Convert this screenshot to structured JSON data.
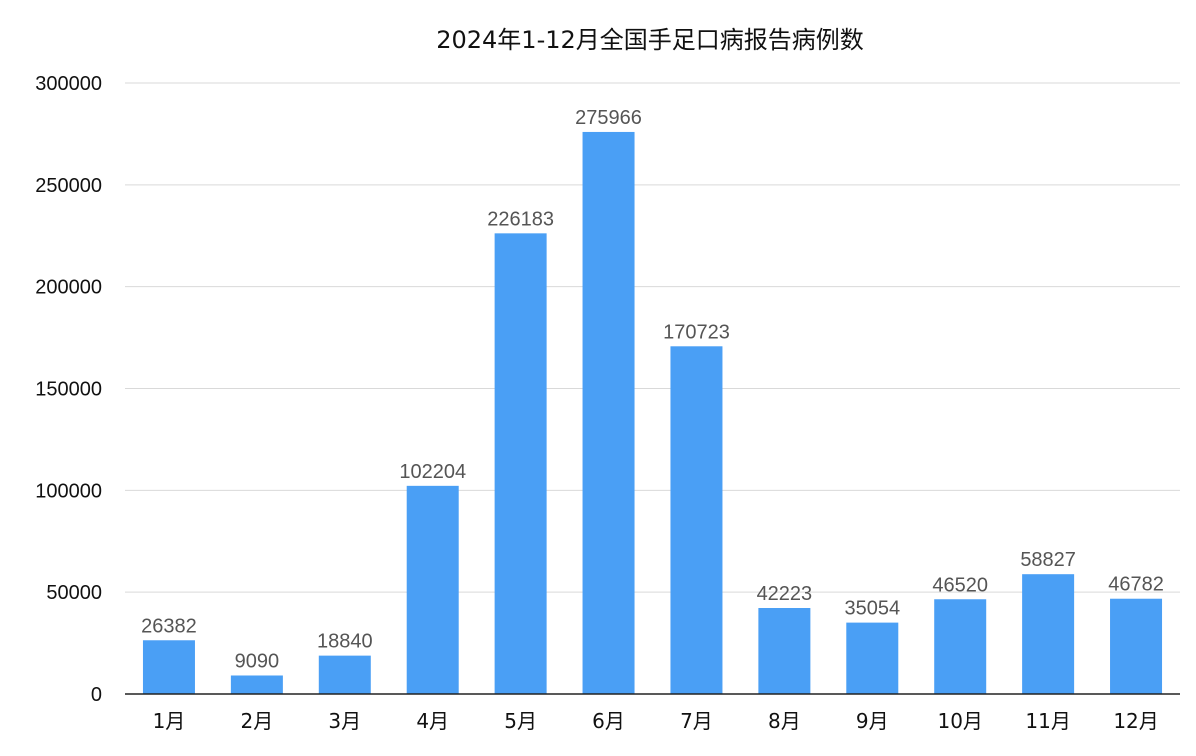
{
  "chart_data": {
    "type": "bar",
    "title": "2024年1-12月全国手足口病报告病例数",
    "xlabel": "",
    "ylabel": "",
    "categories": [
      "1月",
      "2月",
      "3月",
      "4月",
      "5月",
      "6月",
      "7月",
      "8月",
      "9月",
      "10月",
      "11月",
      "12月"
    ],
    "values": [
      26382,
      9090,
      18840,
      102204,
      226183,
      275966,
      170723,
      42223,
      35054,
      46520,
      58827,
      46782
    ],
    "data_labels": [
      "26382",
      "9090",
      "18840",
      "102204",
      "226183",
      "275966",
      "170723",
      "42223",
      "35054",
      "46520",
      "58827",
      "46782"
    ],
    "ylim": [
      0,
      300000
    ],
    "yticks": [
      "0",
      "50000",
      "100000",
      "150000",
      "200000",
      "250000",
      "300000"
    ],
    "grid": true,
    "legend": "none",
    "bar_color": "#4A9FF5"
  }
}
